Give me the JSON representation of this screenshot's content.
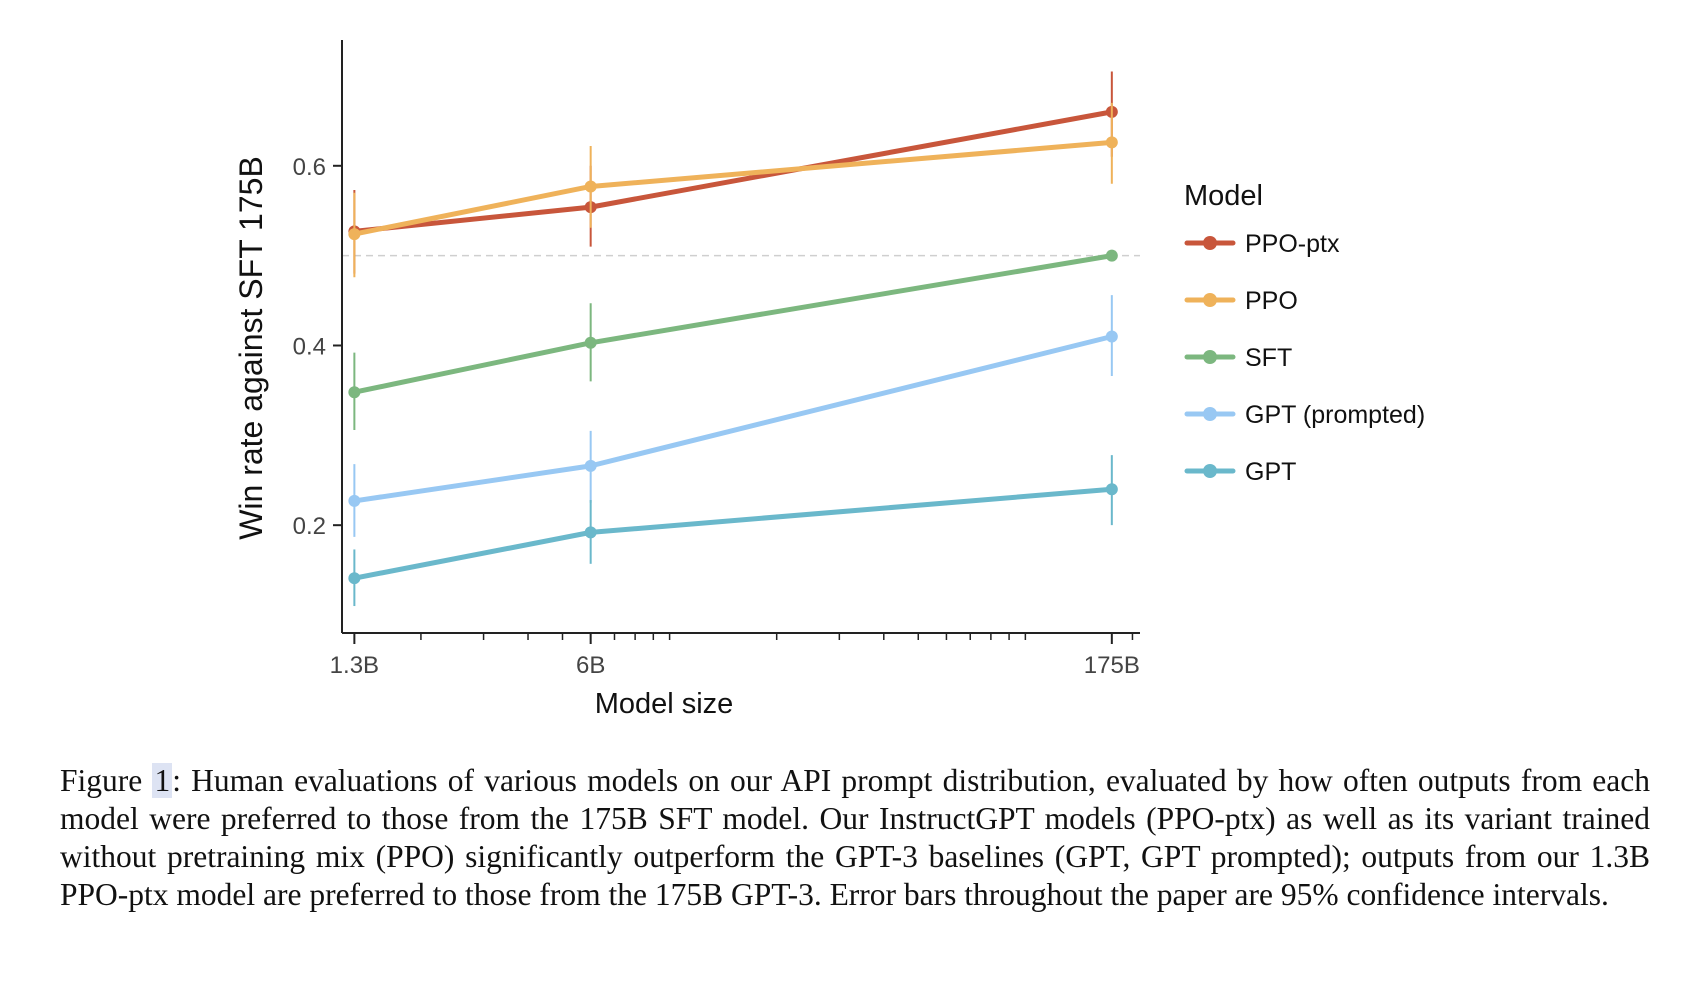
{
  "chart_data": {
    "type": "line",
    "title": "",
    "xlabel": "Model size",
    "ylabel": "Win rate against SFT 175B",
    "x_scale": "log",
    "categories": [
      "1.3B",
      "6B",
      "175B"
    ],
    "x_values": [
      1.3,
      6,
      175
    ],
    "xlim": [
      1.2,
      210
    ],
    "ylim": [
      0.08,
      0.74
    ],
    "y_ticks": [
      0.2,
      0.4,
      0.6
    ],
    "y_tick_labels": [
      "0.2",
      "0.4",
      "0.6"
    ],
    "reference_line": 0.5,
    "legend_title": "Model",
    "legend_position": "right",
    "series": [
      {
        "name": "PPO-ptx",
        "color": "#c8563b",
        "values": [
          0.527,
          0.554,
          0.66
        ],
        "lower": [
          0.48,
          0.51,
          0.61
        ],
        "upper": [
          0.573,
          0.6,
          0.705
        ]
      },
      {
        "name": "PPO",
        "color": "#efb25a",
        "values": [
          0.524,
          0.577,
          0.626
        ],
        "lower": [
          0.476,
          0.531,
          0.58
        ],
        "upper": [
          0.57,
          0.622,
          0.67
        ]
      },
      {
        "name": "SFT",
        "color": "#7cb77f",
        "values": [
          0.348,
          0.403,
          0.5
        ],
        "lower": [
          0.306,
          0.36,
          0.5
        ],
        "upper": [
          0.392,
          0.447,
          0.5
        ]
      },
      {
        "name": "GPT (prompted)",
        "color": "#98c8f3",
        "values": [
          0.227,
          0.266,
          0.41
        ],
        "lower": [
          0.187,
          0.225,
          0.366
        ],
        "upper": [
          0.268,
          0.305,
          0.456
        ]
      },
      {
        "name": "GPT",
        "color": "#6ab8cb",
        "values": [
          0.141,
          0.192,
          0.24
        ],
        "lower": [
          0.11,
          0.157,
          0.2
        ],
        "upper": [
          0.173,
          0.228,
          0.278
        ]
      }
    ]
  },
  "caption": {
    "label": "Figure ",
    "number": "1",
    "text": ": Human evaluations of various models on our API prompt distribution, evaluated by how often outputs from each model were preferred to those from the 175B SFT model. Our InstructGPT models (PPO-ptx) as well as its variant trained without pretraining mix (PPO) significantly outperform the GPT-3 baselines (GPT, GPT prompted); outputs from our 1.3B PPO-ptx model are preferred to those from the 175B GPT-3. Error bars throughout the paper are 95% confidence intervals."
  }
}
